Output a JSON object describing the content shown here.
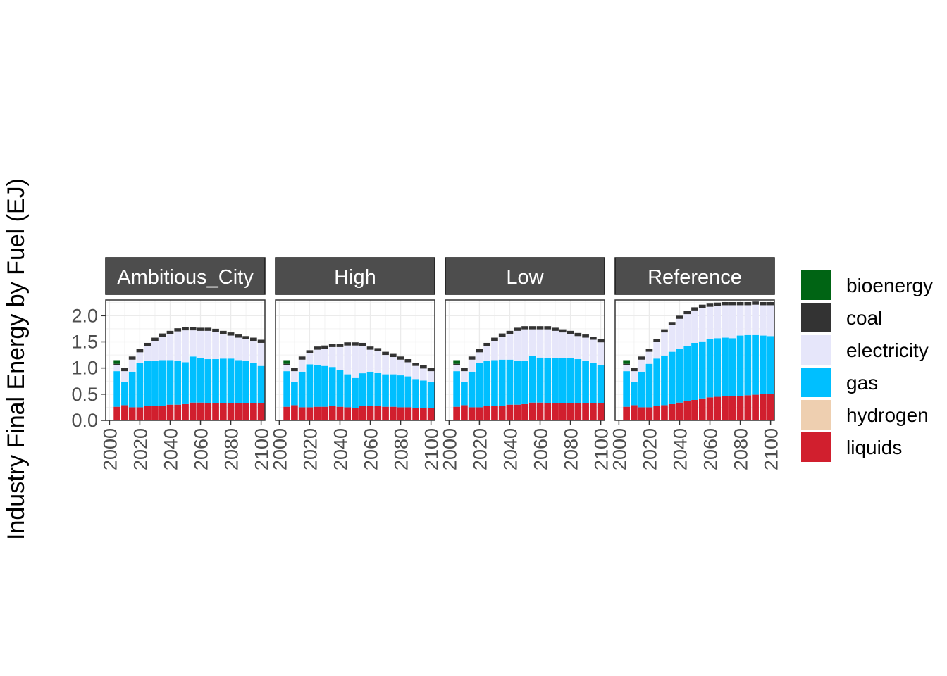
{
  "chart_data": {
    "type": "bar",
    "stacked": true,
    "facet_by": "scenario",
    "ylabel": "Industry Final Energy by Fuel (EJ)",
    "xlabel": "",
    "ylim": [
      0,
      2.3
    ],
    "xlim": [
      2000,
      2100
    ],
    "y_ticks": [
      "0.0",
      "0.5",
      "1.0",
      "1.5",
      "2.0"
    ],
    "x_ticks": [
      "2000",
      "2020",
      "2040",
      "2060",
      "2080",
      "2100"
    ],
    "grid": true,
    "legend_position": "right",
    "years": [
      2005,
      2010,
      2015,
      2020,
      2025,
      2030,
      2035,
      2040,
      2045,
      2050,
      2055,
      2060,
      2065,
      2070,
      2075,
      2080,
      2085,
      2090,
      2095,
      2100
    ],
    "fuels": [
      {
        "name": "bioenergy",
        "color": "#006414"
      },
      {
        "name": "coal",
        "color": "#333333"
      },
      {
        "name": "electricity",
        "color": "#e6e6fa"
      },
      {
        "name": "gas",
        "color": "#00bfff"
      },
      {
        "name": "hydrogen",
        "color": "#eecfb0"
      },
      {
        "name": "liquids",
        "color": "#d11f2e"
      }
    ],
    "panels": [
      {
        "scenario": "Ambitious_City",
        "series": {
          "liquids": [
            0.26,
            0.29,
            0.25,
            0.25,
            0.27,
            0.28,
            0.28,
            0.3,
            0.3,
            0.31,
            0.34,
            0.34,
            0.33,
            0.33,
            0.33,
            0.33,
            0.33,
            0.33,
            0.33,
            0.33
          ],
          "gas": [
            0.68,
            0.45,
            0.68,
            0.84,
            0.86,
            0.86,
            0.87,
            0.85,
            0.83,
            0.8,
            0.88,
            0.85,
            0.84,
            0.84,
            0.85,
            0.85,
            0.82,
            0.8,
            0.76,
            0.71
          ],
          "hydrogen": [
            0,
            0,
            0,
            0,
            0,
            0,
            0,
            0,
            0,
            0,
            0,
            0,
            0,
            0,
            0,
            0,
            0,
            0,
            0,
            0
          ],
          "electricity": [
            0.11,
            0.2,
            0.23,
            0.21,
            0.29,
            0.38,
            0.45,
            0.5,
            0.57,
            0.61,
            0.5,
            0.52,
            0.54,
            0.52,
            0.47,
            0.44,
            0.43,
            0.42,
            0.43,
            0.44
          ],
          "coal": [
            0.03,
            0.06,
            0.06,
            0.06,
            0.06,
            0.06,
            0.06,
            0.06,
            0.06,
            0.06,
            0.06,
            0.06,
            0.06,
            0.06,
            0.06,
            0.06,
            0.06,
            0.06,
            0.06,
            0.06
          ],
          "bioenergy": [
            0.07,
            0,
            0,
            0,
            0,
            0,
            0,
            0,
            0,
            0,
            0,
            0,
            0,
            0,
            0,
            0,
            0,
            0,
            0,
            0
          ]
        }
      },
      {
        "scenario": "High",
        "series": {
          "liquids": [
            0.26,
            0.29,
            0.25,
            0.25,
            0.26,
            0.26,
            0.27,
            0.26,
            0.25,
            0.23,
            0.28,
            0.28,
            0.27,
            0.26,
            0.26,
            0.25,
            0.25,
            0.24,
            0.24,
            0.24
          ],
          "gas": [
            0.68,
            0.45,
            0.68,
            0.82,
            0.8,
            0.78,
            0.75,
            0.7,
            0.63,
            0.58,
            0.62,
            0.65,
            0.64,
            0.62,
            0.62,
            0.61,
            0.59,
            0.55,
            0.52,
            0.49
          ],
          "hydrogen": [
            0,
            0,
            0,
            0,
            0,
            0,
            0,
            0,
            0,
            0,
            0,
            0,
            0,
            0,
            0,
            0,
            0,
            0,
            0,
            0
          ],
          "electricity": [
            0.11,
            0.2,
            0.23,
            0.21,
            0.29,
            0.33,
            0.38,
            0.44,
            0.55,
            0.62,
            0.52,
            0.42,
            0.41,
            0.37,
            0.33,
            0.3,
            0.27,
            0.25,
            0.23,
            0.21
          ],
          "coal": [
            0.03,
            0.06,
            0.06,
            0.06,
            0.06,
            0.06,
            0.06,
            0.06,
            0.06,
            0.06,
            0.06,
            0.06,
            0.06,
            0.06,
            0.06,
            0.06,
            0.06,
            0.06,
            0.06,
            0.06
          ],
          "bioenergy": [
            0.07,
            0,
            0,
            0,
            0,
            0,
            0,
            0,
            0,
            0,
            0,
            0,
            0,
            0,
            0,
            0,
            0,
            0,
            0,
            0
          ]
        }
      },
      {
        "scenario": "Low",
        "series": {
          "liquids": [
            0.26,
            0.29,
            0.25,
            0.25,
            0.27,
            0.28,
            0.28,
            0.3,
            0.3,
            0.31,
            0.34,
            0.34,
            0.33,
            0.33,
            0.33,
            0.33,
            0.33,
            0.33,
            0.33,
            0.33
          ],
          "gas": [
            0.68,
            0.45,
            0.68,
            0.84,
            0.86,
            0.87,
            0.88,
            0.86,
            0.84,
            0.83,
            0.89,
            0.86,
            0.86,
            0.86,
            0.86,
            0.86,
            0.84,
            0.81,
            0.77,
            0.72
          ],
          "hydrogen": [
            0,
            0,
            0,
            0,
            0,
            0,
            0,
            0,
            0,
            0,
            0,
            0,
            0,
            0,
            0,
            0,
            0,
            0,
            0,
            0
          ],
          "electricity": [
            0.11,
            0.2,
            0.23,
            0.21,
            0.29,
            0.37,
            0.44,
            0.49,
            0.57,
            0.6,
            0.51,
            0.54,
            0.55,
            0.52,
            0.49,
            0.46,
            0.44,
            0.44,
            0.44,
            0.44
          ],
          "coal": [
            0.03,
            0.06,
            0.06,
            0.06,
            0.06,
            0.06,
            0.06,
            0.06,
            0.06,
            0.06,
            0.06,
            0.06,
            0.06,
            0.06,
            0.06,
            0.06,
            0.06,
            0.06,
            0.06,
            0.06
          ],
          "bioenergy": [
            0.07,
            0,
            0,
            0,
            0,
            0,
            0,
            0,
            0,
            0,
            0,
            0,
            0,
            0,
            0,
            0,
            0,
            0,
            0,
            0
          ]
        }
      },
      {
        "scenario": "Reference",
        "series": {
          "liquids": [
            0.26,
            0.29,
            0.25,
            0.25,
            0.27,
            0.29,
            0.31,
            0.34,
            0.37,
            0.39,
            0.42,
            0.44,
            0.45,
            0.46,
            0.46,
            0.47,
            0.48,
            0.49,
            0.5,
            0.5
          ],
          "gas": [
            0.68,
            0.45,
            0.68,
            0.83,
            0.91,
            0.95,
            1.0,
            1.03,
            1.05,
            1.09,
            1.09,
            1.12,
            1.12,
            1.12,
            1.11,
            1.15,
            1.15,
            1.14,
            1.12,
            1.11
          ],
          "hydrogen": [
            0,
            0,
            0,
            0,
            0,
            0,
            0,
            0,
            0,
            0,
            0,
            0,
            0,
            0,
            0,
            0,
            0,
            0,
            0,
            0
          ],
          "electricity": [
            0.11,
            0.2,
            0.23,
            0.23,
            0.32,
            0.44,
            0.51,
            0.57,
            0.61,
            0.62,
            0.64,
            0.61,
            0.62,
            0.62,
            0.63,
            0.58,
            0.57,
            0.58,
            0.58,
            0.59
          ],
          "coal": [
            0.03,
            0.06,
            0.06,
            0.06,
            0.06,
            0.06,
            0.06,
            0.06,
            0.06,
            0.06,
            0.06,
            0.06,
            0.06,
            0.06,
            0.06,
            0.06,
            0.06,
            0.06,
            0.06,
            0.06
          ],
          "bioenergy": [
            0.07,
            0,
            0,
            0,
            0,
            0,
            0,
            0,
            0,
            0,
            0,
            0,
            0,
            0,
            0,
            0,
            0,
            0,
            0,
            0
          ]
        }
      }
    ]
  }
}
